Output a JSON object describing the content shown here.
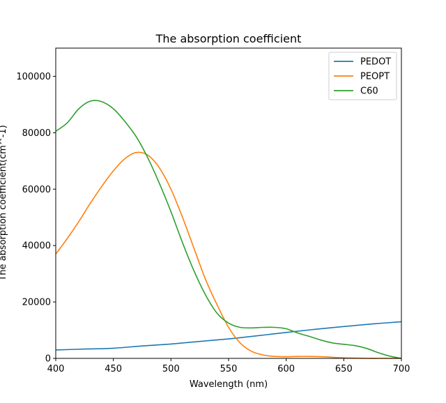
{
  "chart_data": {
    "type": "line",
    "title": "The absorption coefficient",
    "xlabel": "Wavelength (nm)",
    "ylabel": "The absorption coefficient(cm^-1)",
    "xlim": [
      400,
      700
    ],
    "ylim": [
      0,
      110000
    ],
    "xticks": [
      400,
      450,
      500,
      550,
      600,
      650,
      700
    ],
    "yticks": [
      0,
      20000,
      40000,
      60000,
      80000,
      100000
    ],
    "grid": false,
    "legend_position": "top-right",
    "series": [
      {
        "name": "PEDOT",
        "color": "#1f77b4",
        "x": [
          400,
          425,
          450,
          475,
          500,
          525,
          550,
          575,
          600,
          625,
          650,
          675,
          700
        ],
        "y": [
          3000,
          3300,
          3600,
          4400,
          5100,
          6000,
          6900,
          8000,
          9200,
          10300,
          11300,
          12200,
          13000
        ]
      },
      {
        "name": "PEOPT",
        "color": "#ff7f0e",
        "x": [
          400,
          410,
          420,
          430,
          440,
          450,
          460,
          470,
          480,
          490,
          500,
          510,
          520,
          530,
          540,
          550,
          560,
          570,
          580,
          590,
          600,
          610,
          620,
          630,
          640,
          650,
          660,
          670,
          680,
          690,
          700
        ],
        "y": [
          37000,
          42500,
          48500,
          55000,
          61000,
          66500,
          70800,
          73000,
          72000,
          67500,
          60000,
          50000,
          39000,
          28000,
          19000,
          11000,
          5500,
          2500,
          1200,
          700,
          600,
          700,
          700,
          600,
          400,
          200,
          100,
          0,
          0,
          0,
          0
        ]
      },
      {
        "name": "C60",
        "color": "#2ca02c",
        "x": [
          400,
          410,
          420,
          430,
          440,
          450,
          460,
          470,
          480,
          490,
          500,
          510,
          520,
          530,
          540,
          550,
          560,
          570,
          580,
          590,
          600,
          610,
          620,
          630,
          640,
          650,
          660,
          670,
          680,
          690,
          700
        ],
        "y": [
          80500,
          83500,
          88500,
          91200,
          91000,
          88500,
          84000,
          78500,
          71000,
          62000,
          52000,
          41000,
          31000,
          22500,
          16000,
          12500,
          11000,
          10800,
          11000,
          11000,
          10500,
          9000,
          7800,
          6500,
          5500,
          5000,
          4500,
          3500,
          2000,
          800,
          0
        ]
      }
    ]
  }
}
